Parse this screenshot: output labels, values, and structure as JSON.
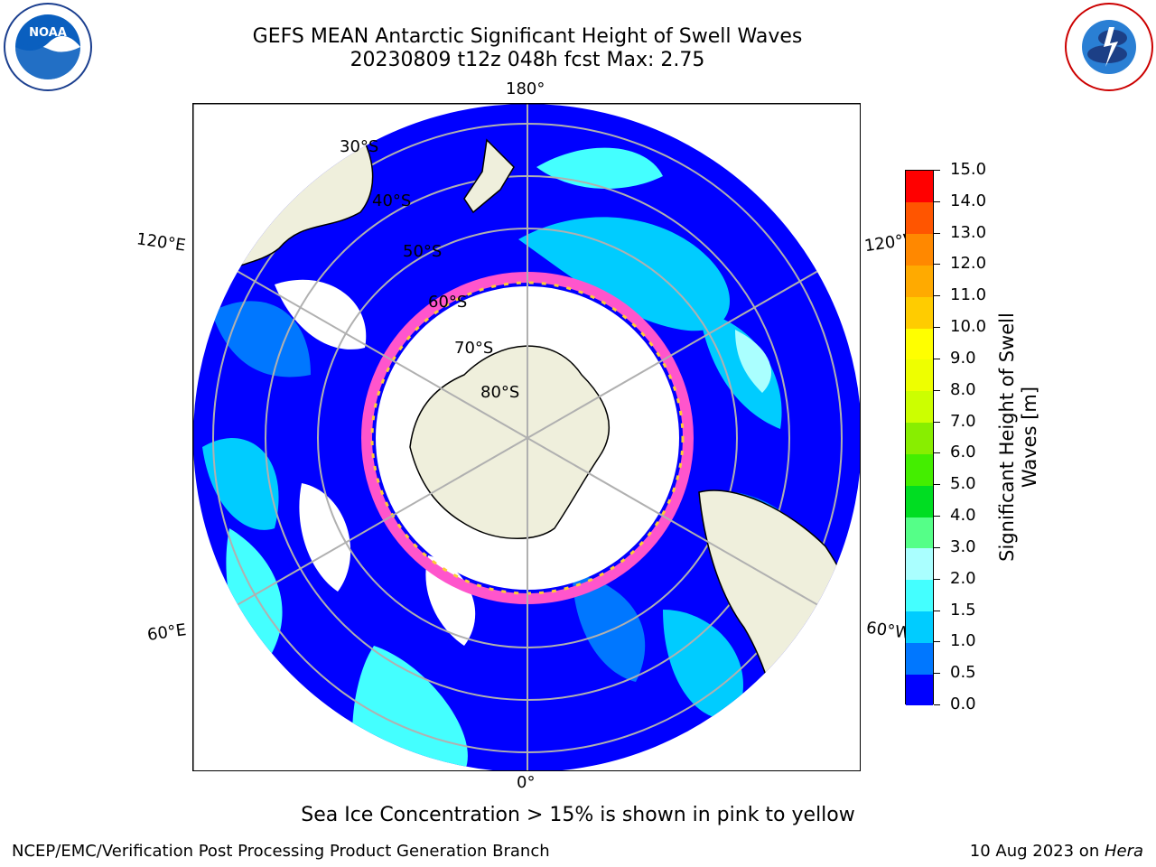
{
  "title_line1": "GEFS MEAN Antarctic Significant Height of Swell Waves",
  "title_line2": "20230809 t12z 048h fcst   Max: 2.75",
  "logos": {
    "left": "NOAA",
    "right": "NATIONAL WEATHER SERVICE"
  },
  "map": {
    "projection": "south-polar-stereographic",
    "longitude_labels": {
      "top": "180°",
      "bottom": "0°",
      "upper_left": "120°E",
      "upper_right": "120°W",
      "lower_left": "60°E",
      "lower_right": "60°W"
    },
    "latitude_labels": [
      "30°S",
      "40°S",
      "50°S",
      "60°S",
      "70°S",
      "80°S"
    ],
    "colors": {
      "land": "#efefdc",
      "ice_edge": "#ff55cc",
      "ice_yellow": "#ffcc33",
      "grid": "#b0b0b0"
    }
  },
  "colorbar": {
    "label": "Significant Height of Swell Waves [m]",
    "ticks": [
      "0.0",
      "0.5",
      "1.0",
      "1.5",
      "2.0",
      "3.0",
      "4.0",
      "5.0",
      "6.0",
      "7.0",
      "8.0",
      "9.0",
      "10.0",
      "11.0",
      "12.0",
      "13.0",
      "14.0",
      "15.0"
    ],
    "colors": [
      "#0000ff",
      "#0077ff",
      "#00ccff",
      "#44ffff",
      "#aaffff",
      "#55ff88",
      "#00dd22",
      "#44ee00",
      "#88ee00",
      "#ccff00",
      "#eeff00",
      "#ffff00",
      "#ffcc00",
      "#ffaa00",
      "#ff8800",
      "#ff5500",
      "#ff0000"
    ]
  },
  "subtitle": "Sea Ice Concentration > 15% is shown in pink to yellow",
  "footer_left": "NCEP/EMC/Verification Post Processing Product Generation Branch",
  "footer_right_prefix": "10 Aug 2023 on ",
  "footer_right_host": "Hera"
}
